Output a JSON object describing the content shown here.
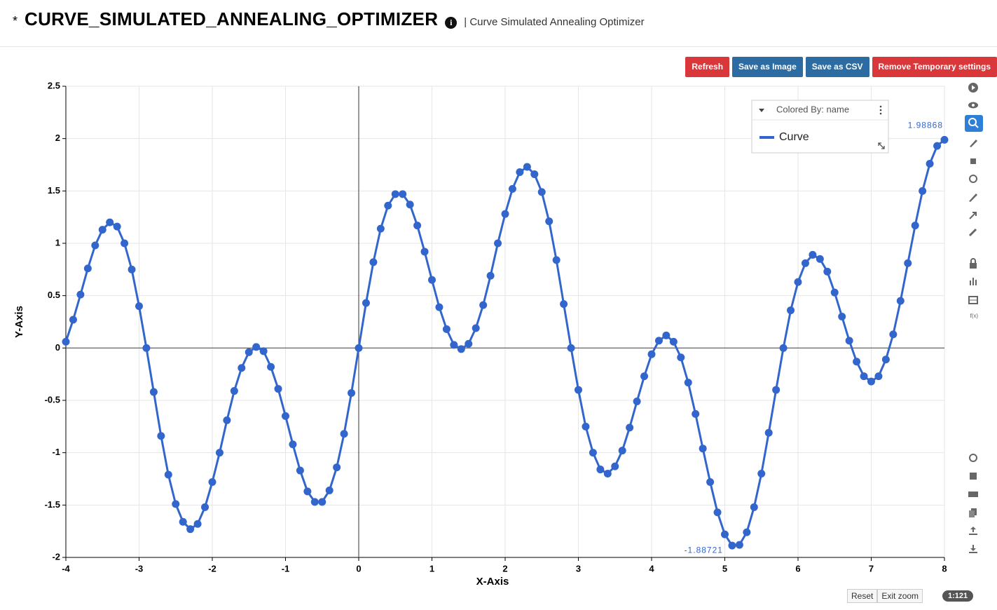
{
  "header": {
    "marker": "*",
    "title": "CURVE_SIMULATED_ANNEALING_OPTIMIZER",
    "subtitle": "| Curve Simulated Annealing Optimizer"
  },
  "buttons": [
    "Refresh",
    "Save as Image",
    "Save as CSV",
    "Remove Temporary settings"
  ],
  "toolbar": {
    "fx": "f(x)"
  },
  "footer": {
    "reset": "Reset",
    "exit_zoom": "Exit zoom",
    "zoom_ratio": "1:121"
  },
  "chart_data": {
    "type": "line",
    "x_label": "X-Axis",
    "y_label": "Y-Axis",
    "legend_title": "Colored By: name",
    "legend": "top-right",
    "grid": true,
    "xlim": [
      -4,
      8
    ],
    "ylim": [
      -2,
      2.5
    ],
    "xticks": [
      -4,
      -3,
      -2,
      -1,
      0,
      1,
      2,
      3,
      4,
      5,
      6,
      7,
      8
    ],
    "yticks": [
      -2,
      -1.5,
      -1,
      -0.5,
      0,
      0.5,
      1,
      1.5,
      2,
      2.5
    ],
    "x": [
      -4,
      -3.9,
      -3.8,
      -3.7,
      -3.6,
      -3.5,
      -3.4,
      -3.3,
      -3.2,
      -3.1,
      -3,
      -2.9,
      -2.8,
      -2.7,
      -2.6,
      -2.5,
      -2.4,
      -2.3,
      -2.2,
      -2.1,
      -2,
      -1.9,
      -1.8,
      -1.7,
      -1.6,
      -1.5,
      -1.4,
      -1.3,
      -1.2,
      -1.1,
      -1,
      -0.9,
      -0.8,
      -0.7,
      -0.6,
      -0.5,
      -0.4,
      -0.3,
      -0.2,
      -0.1,
      0,
      0.1,
      0.2,
      0.3,
      0.4,
      0.5,
      0.6,
      0.7,
      0.8,
      0.9,
      1,
      1.1,
      1.2,
      1.3,
      1.4,
      1.5,
      1.6,
      1.7,
      1.8,
      1.9,
      2,
      2.1,
      2.2,
      2.3,
      2.4,
      2.5,
      2.6,
      2.7,
      2.8,
      2.9,
      3,
      3.1,
      3.2,
      3.3,
      3.4,
      3.5,
      3.6,
      3.7,
      3.8,
      3.9,
      4,
      4.1,
      4.2,
      4.3,
      4.4,
      4.5,
      4.6,
      4.7,
      4.8,
      4.9,
      5,
      5.1,
      5.2,
      5.3,
      5.4,
      5.5,
      5.6,
      5.7,
      5.8,
      5.9,
      6,
      6.1,
      6.2,
      6.3,
      6.4,
      6.5,
      6.6,
      6.7,
      6.8,
      6.9,
      7,
      7.1,
      7.2,
      7.3,
      7.4,
      7.5,
      7.6,
      7.7,
      7.8,
      7.9,
      8
    ],
    "series": [
      {
        "name": "Curve",
        "color": "#3366cc",
        "values": [
          0.06,
          0.27,
          0.51,
          0.76,
          0.98,
          1.13,
          1.2,
          1.16,
          1.0,
          0.75,
          0.4,
          0,
          -0.42,
          -0.84,
          -1.21,
          -1.49,
          -1.66,
          -1.73,
          -1.68,
          -1.52,
          -1.28,
          -1.0,
          -0.69,
          -0.41,
          -0.19,
          -0.04,
          0.01,
          -0.03,
          -0.18,
          -0.39,
          -0.65,
          -0.92,
          -1.17,
          -1.37,
          -1.47,
          -1.47,
          -1.36,
          -1.14,
          -0.82,
          -0.43,
          0,
          0.43,
          0.82,
          1.14,
          1.36,
          1.47,
          1.47,
          1.37,
          1.17,
          0.92,
          0.65,
          0.39,
          0.18,
          0.03,
          -0.01,
          0.04,
          0.19,
          0.41,
          0.69,
          1.0,
          1.28,
          1.52,
          1.68,
          1.73,
          1.66,
          1.49,
          1.21,
          0.84,
          0.42,
          0,
          -0.4,
          -0.75,
          -1.0,
          -1.16,
          -1.2,
          -1.13,
          -0.98,
          -0.76,
          -0.51,
          -0.27,
          -0.06,
          0.07,
          0.12,
          0.06,
          -0.09,
          -0.33,
          -0.63,
          -0.96,
          -1.28,
          -1.57,
          -1.78,
          -1.88721,
          -1.88,
          -1.76,
          -1.52,
          -1.2,
          -0.81,
          -0.4,
          0,
          0.36,
          0.63,
          0.81,
          0.89,
          0.85,
          0.73,
          0.53,
          0.3,
          0.07,
          -0.13,
          -0.27,
          -0.32,
          -0.27,
          -0.11,
          0.13,
          0.45,
          0.81,
          1.17,
          1.5,
          1.76,
          1.93,
          1.98868
        ]
      }
    ]
  }
}
